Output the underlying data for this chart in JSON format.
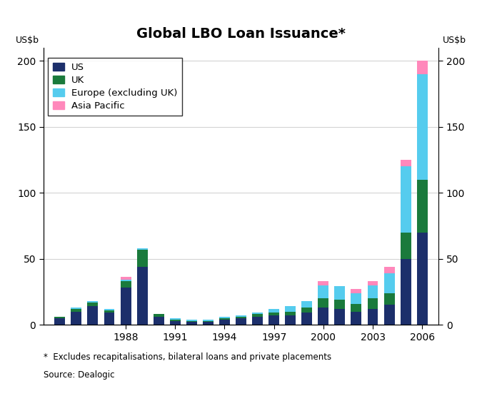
{
  "title": "Global LBO Loan Issuance*",
  "footnote1": "*  Excludes recapitalisations, bilateral loans and private placements",
  "footnote2": "Source: Dealogic",
  "ylim": [
    0,
    210
  ],
  "yticks": [
    0,
    50,
    100,
    150,
    200
  ],
  "colors": {
    "US": "#1c2f6b",
    "UK": "#1a7a3c",
    "Europe": "#55ccee",
    "Asia": "#ff88bb"
  },
  "legend_labels": [
    "US",
    "UK",
    "Europe (excluding UK)",
    "Asia Pacific"
  ],
  "years": [
    1984,
    1985,
    1986,
    1987,
    1988,
    1989,
    1990,
    1991,
    1992,
    1993,
    1994,
    1995,
    1996,
    1997,
    1998,
    1999,
    2000,
    2001,
    2002,
    2003,
    2004,
    2005,
    2006
  ],
  "US": [
    5,
    10,
    14,
    9,
    28,
    44,
    6,
    3,
    2,
    2,
    4,
    5,
    6,
    7,
    7,
    9,
    13,
    12,
    10,
    12,
    15,
    50,
    70
  ],
  "UK": [
    1,
    2,
    3,
    2,
    5,
    13,
    2,
    1,
    1,
    1,
    1,
    1,
    2,
    2,
    3,
    4,
    7,
    7,
    6,
    8,
    9,
    20,
    40
  ],
  "Europe": [
    0,
    1,
    1,
    1,
    1,
    1,
    0,
    1,
    1,
    1,
    1,
    1,
    1,
    3,
    4,
    5,
    10,
    10,
    8,
    10,
    15,
    50,
    80
  ],
  "Asia": [
    0,
    0,
    0,
    0,
    2,
    0,
    0,
    0,
    0,
    0,
    0,
    0,
    0,
    0,
    0,
    0,
    3,
    0,
    3,
    3,
    5,
    5,
    10
  ],
  "xticks": [
    1988,
    1991,
    1994,
    1997,
    2000,
    2003,
    2006
  ],
  "bar_width": 0.65,
  "xlim": [
    1983.0,
    2007.0
  ]
}
